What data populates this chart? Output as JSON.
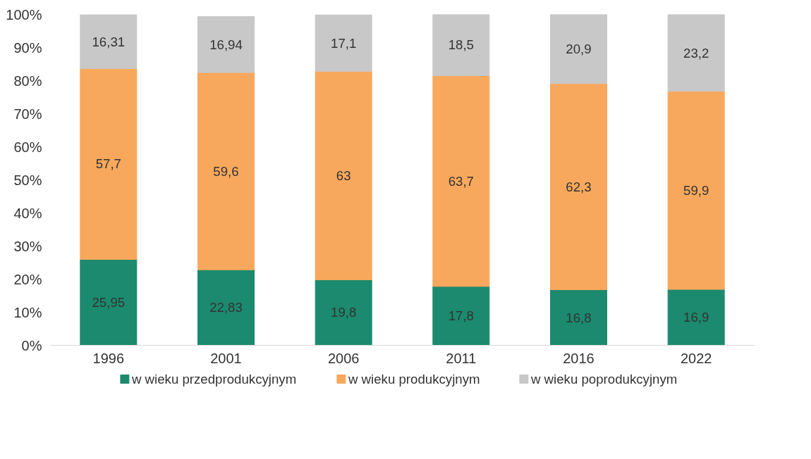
{
  "chart_data": {
    "type": "bar",
    "stacked": true,
    "categories": [
      "1996",
      "2001",
      "2006",
      "2011",
      "2016",
      "2022"
    ],
    "series": [
      {
        "name": "w wieku przedprodukcyjnym",
        "color": "#1b8a6e",
        "values": [
          25.95,
          22.83,
          19.8,
          17.8,
          16.8,
          16.9
        ],
        "value_labels": [
          "25,95",
          "22,83",
          "19,8",
          "17,8",
          "16,8",
          "16,9"
        ]
      },
      {
        "name": "w wieku produkcyjnym",
        "color": "#f8a85c",
        "values": [
          57.7,
          59.6,
          63,
          63.7,
          62.3,
          59.9
        ],
        "value_labels": [
          "57,7",
          "59,6",
          "63",
          "63,7",
          "62,3",
          "59,9"
        ]
      },
      {
        "name": "w wieku poprodukcyjnym",
        "color": "#c8c8c8",
        "values": [
          16.31,
          16.94,
          17.1,
          18.5,
          20.9,
          23.2
        ],
        "value_labels": [
          "16,31",
          "16,94",
          "17,1",
          "18,5",
          "20,9",
          "23,2"
        ]
      }
    ],
    "ylim": [
      0,
      100
    ],
    "yticks": [
      {
        "value": 0,
        "label": "0%"
      },
      {
        "value": 10,
        "label": "10%"
      },
      {
        "value": 20,
        "label": "20%"
      },
      {
        "value": 30,
        "label": "30%"
      },
      {
        "value": 40,
        "label": "40%"
      },
      {
        "value": 50,
        "label": "50%"
      },
      {
        "value": 60,
        "label": "60%"
      },
      {
        "value": 70,
        "label": "70%"
      },
      {
        "value": 80,
        "label": "80%"
      },
      {
        "value": 90,
        "label": "90%"
      },
      {
        "value": 100,
        "label": "100%"
      }
    ],
    "grid": false,
    "legend": "bottom"
  }
}
